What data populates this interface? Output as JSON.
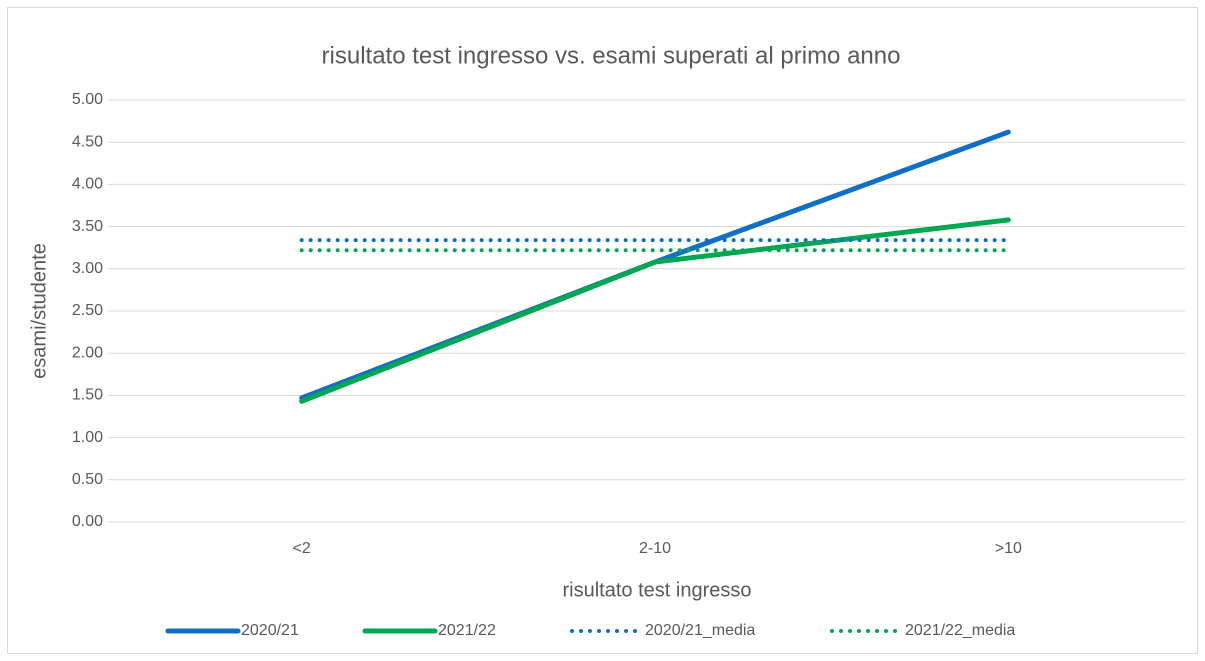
{
  "chart_data": {
    "type": "line",
    "title": "risultato test ingresso vs. esami superati al primo anno",
    "x_label": "risultato test ingresso",
    "y_label": "esami/studente",
    "categories": [
      "<2",
      "2-10",
      ">10"
    ],
    "series": [
      {
        "name": "2020/21",
        "color": "#0f6fc6",
        "style": "solid",
        "values": [
          1.47,
          3.08,
          4.62
        ]
      },
      {
        "name": "2021/22",
        "color": "#00a651",
        "style": "solid",
        "values": [
          1.43,
          3.08,
          3.58
        ]
      },
      {
        "name": "2020/21_media",
        "color": "#0f6fc6",
        "style": "dotted",
        "values": [
          3.34,
          3.34,
          3.34
        ]
      },
      {
        "name": "2021/22_media",
        "color": "#00a651",
        "style": "dotted",
        "values": [
          3.22,
          3.22,
          3.22
        ]
      }
    ],
    "ylim": [
      0,
      5
    ],
    "yticks": [
      {
        "value": 0,
        "label": "0.00"
      },
      {
        "value": 0.5,
        "label": "0.50"
      },
      {
        "value": 1,
        "label": "1.00"
      },
      {
        "value": 1.5,
        "label": "1.50"
      },
      {
        "value": 2,
        "label": "2.00"
      },
      {
        "value": 2.5,
        "label": "2.50"
      },
      {
        "value": 3,
        "label": "3.00"
      },
      {
        "value": 3.5,
        "label": "3.50"
      },
      {
        "value": 4,
        "label": "4.00"
      },
      {
        "value": 4.5,
        "label": "4.50"
      },
      {
        "value": 5,
        "label": "5.00"
      }
    ],
    "grid": true,
    "legend": "bottom"
  }
}
